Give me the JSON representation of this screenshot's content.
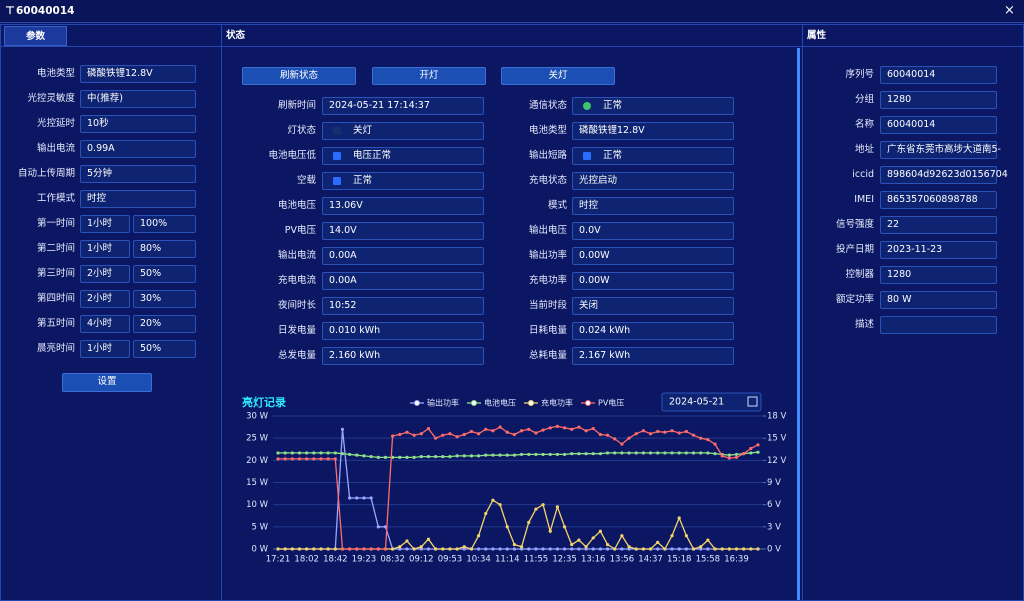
{
  "window": {
    "title": "60040014"
  },
  "params": {
    "tab": "参数",
    "fields": [
      {
        "label": "电池类型",
        "value": "磷酸铁锂12.8V"
      },
      {
        "label": "光控灵敏度",
        "value": "中(推荐)"
      },
      {
        "label": "光控延时",
        "value": "10秒"
      },
      {
        "label": "输出电流",
        "value": "0.99A"
      },
      {
        "label": "自动上传周期",
        "value": "5分钟"
      },
      {
        "label": "工作模式",
        "value": "时控"
      }
    ],
    "times": [
      {
        "label": "第一时间",
        "hours": "1小时",
        "percent": "100%"
      },
      {
        "label": "第二时间",
        "hours": "1小时",
        "percent": "80%"
      },
      {
        "label": "第三时间",
        "hours": "2小时",
        "percent": "50%"
      },
      {
        "label": "第四时间",
        "hours": "2小时",
        "percent": "30%"
      },
      {
        "label": "第五时间",
        "hours": "4小时",
        "percent": "20%"
      },
      {
        "label": "晨亮时间",
        "hours": "1小时",
        "percent": "50%"
      }
    ],
    "button": "设置"
  },
  "status": {
    "header": "状态",
    "buttons": [
      "刷新状态",
      "开灯",
      "关灯"
    ],
    "left": [
      {
        "label": "刷新时间",
        "value": "2024-05-21 17:14:37"
      },
      {
        "label": "灯状态",
        "value": "关灯"
      },
      {
        "label": "电池电压低",
        "value": "电压正常"
      },
      {
        "label": "空载",
        "value": "正常"
      },
      {
        "label": "电池电压",
        "value": "13.06V"
      },
      {
        "label": "PV电压",
        "value": "14.0V"
      },
      {
        "label": "输出电流",
        "value": "0.00A"
      },
      {
        "label": "充电电流",
        "value": "0.00A"
      },
      {
        "label": "夜间时长",
        "value": "10:52"
      },
      {
        "label": "日发电量",
        "value": "0.010 kWh"
      },
      {
        "label": "总发电量",
        "value": "2.160 kWh"
      }
    ],
    "right": [
      {
        "label": "通信状态",
        "value": "正常"
      },
      {
        "label": "电池类型",
        "value": "磷酸铁锂12.8V"
      },
      {
        "label": "输出短路",
        "value": "正常"
      },
      {
        "label": "充电状态",
        "value": "光控启动"
      },
      {
        "label": "模式",
        "value": "时控"
      },
      {
        "label": "输出电压",
        "value": "0.0V"
      },
      {
        "label": "输出功率",
        "value": "0.00W"
      },
      {
        "label": "充电功率",
        "value": "0.00W"
      },
      {
        "label": "当前时段",
        "value": "关闭"
      },
      {
        "label": "日耗电量",
        "value": "0.024 kWh"
      },
      {
        "label": "总耗电量",
        "value": "2.167 kWh"
      }
    ]
  },
  "properties": {
    "header": "属性",
    "fields": [
      {
        "label": "序列号",
        "value": "60040014"
      },
      {
        "label": "分组",
        "value": "1280"
      },
      {
        "label": "名称",
        "value": "60040014"
      },
      {
        "label": "地址",
        "value": "广东省东莞市高埗大道南5-"
      },
      {
        "label": "iccid",
        "value": "898604d92623d0156704"
      },
      {
        "label": "IMEI",
        "value": "865357060898788"
      },
      {
        "label": "信号强度",
        "value": "22"
      },
      {
        "label": "投产日期",
        "value": "2023-11-23"
      },
      {
        "label": "控制器",
        "value": "1280"
      },
      {
        "label": "额定功率",
        "value": "80 W"
      },
      {
        "label": "描述"
      }
    ]
  },
  "chart_data": {
    "type": "line",
    "title": "亮灯记录",
    "date": "2024-05-21",
    "categories": [
      "17:21",
      null,
      null,
      null,
      "18:02",
      null,
      null,
      null,
      "18:42",
      null,
      null,
      null,
      "19:23",
      null,
      null,
      null,
      "08:32",
      null,
      null,
      null,
      "09:12",
      null,
      null,
      null,
      "09:53",
      null,
      null,
      null,
      "10:34",
      null,
      null,
      null,
      "11:14",
      null,
      null,
      null,
      "11:55",
      null,
      null,
      null,
      "12:35",
      null,
      null,
      null,
      "13:16",
      null,
      null,
      null,
      "13:56",
      null,
      null,
      null,
      "14:37",
      null,
      null,
      null,
      "15:18",
      null,
      null,
      null,
      "15:58",
      null,
      null,
      null,
      "16:39",
      null,
      null,
      null
    ],
    "ylim": [
      0,
      30
    ],
    "yticks": [
      {
        "value": 0,
        "label": "0 W"
      },
      {
        "value": 5,
        "label": "5 W"
      },
      {
        "value": 10,
        "label": "10 W"
      },
      {
        "value": 15,
        "label": "15 W"
      },
      {
        "value": 20,
        "label": "20 W"
      },
      {
        "value": 25,
        "label": "25 W"
      },
      {
        "value": 30,
        "label": "30 W"
      }
    ],
    "y2lim": [
      0,
      18
    ],
    "y2ticks": [
      {
        "value": 0,
        "label": "0 V"
      },
      {
        "value": 3,
        "label": "3 V"
      },
      {
        "value": 6,
        "label": "6 V"
      },
      {
        "value": 9,
        "label": "9 V"
      },
      {
        "value": 12,
        "label": "12 V"
      },
      {
        "value": 15,
        "label": "15 V"
      },
      {
        "value": 18,
        "label": "18 V"
      }
    ],
    "grid": true,
    "series": [
      {
        "name": "输出功率",
        "color": "#9aa6ff",
        "values": [
          0,
          0,
          0,
          0,
          0,
          0,
          0,
          0,
          0,
          27,
          11.5,
          11.5,
          11.5,
          11.5,
          5,
          5,
          0,
          0,
          0,
          0,
          0,
          0,
          0,
          0,
          0,
          0,
          0,
          0,
          0,
          0,
          0,
          0,
          0,
          0,
          0,
          0,
          0,
          0,
          0,
          0,
          0,
          0,
          0,
          0,
          0,
          0,
          0,
          0,
          0,
          0,
          0,
          0,
          0,
          0,
          0,
          0,
          0,
          0,
          0,
          0,
          0,
          0,
          0,
          0,
          0,
          0,
          0,
          0
        ]
      },
      {
        "name": "电池电压",
        "color": "#8fe08a",
        "axis": "y2",
        "values": [
          13.0,
          13.0,
          13.0,
          13.0,
          13.0,
          13.0,
          13.0,
          13.0,
          13.0,
          12.9,
          12.8,
          12.7,
          12.6,
          12.5,
          12.4,
          12.4,
          12.4,
          12.4,
          12.4,
          12.4,
          12.5,
          12.5,
          12.5,
          12.5,
          12.5,
          12.6,
          12.6,
          12.6,
          12.6,
          12.7,
          12.7,
          12.7,
          12.7,
          12.7,
          12.8,
          12.8,
          12.8,
          12.8,
          12.8,
          12.8,
          12.8,
          12.9,
          12.9,
          12.9,
          12.9,
          12.9,
          13.0,
          13.0,
          13.0,
          13.0,
          13.0,
          13.0,
          13.0,
          13.0,
          13.0,
          13.0,
          13.0,
          13.0,
          13.0,
          13.0,
          13.0,
          12.9,
          12.8,
          12.7,
          12.8,
          12.9,
          13.0,
          13.1
        ]
      },
      {
        "name": "充电功率",
        "color": "#f5d36b",
        "values": [
          0,
          0,
          0,
          0,
          0,
          0,
          0,
          0,
          0,
          0,
          0,
          0,
          0,
          0,
          0,
          0,
          0,
          0.5,
          1.8,
          0,
          0.5,
          2.2,
          0,
          0,
          0,
          0,
          0.5,
          0,
          3,
          8,
          11,
          10,
          5,
          1,
          0.5,
          6,
          9,
          10,
          4,
          9.5,
          5,
          1,
          2,
          0.5,
          2.5,
          4,
          1,
          0,
          3,
          0.5,
          0,
          0,
          0,
          1.5,
          0,
          3,
          7,
          3,
          0,
          0.5,
          2,
          0,
          0,
          0,
          0,
          0,
          0,
          0
        ]
      },
      {
        "name": "PV电压",
        "color": "#ff6b6b",
        "axis": "y2",
        "values": [
          12.2,
          12.2,
          12.2,
          12.2,
          12.2,
          12.2,
          12.2,
          12.2,
          12.2,
          0,
          0,
          0,
          0,
          0,
          0,
          0,
          15.3,
          15.5,
          15.8,
          15.4,
          15.6,
          16.3,
          15.0,
          15.4,
          15.6,
          15.2,
          15.5,
          15.9,
          15.6,
          16.2,
          16.0,
          16.5,
          15.8,
          15.5,
          16.0,
          16.2,
          15.7,
          16.1,
          16.4,
          16.6,
          16.4,
          16.2,
          16.5,
          16.0,
          16.3,
          15.5,
          15.4,
          14.9,
          14.2,
          15.0,
          15.6,
          16.0,
          15.6,
          15.9,
          15.8,
          16.0,
          15.7,
          15.9,
          15.4,
          15.0,
          14.8,
          14.2,
          12.6,
          12.3,
          12.4,
          12.9,
          13.6,
          14.1
        ]
      }
    ]
  }
}
